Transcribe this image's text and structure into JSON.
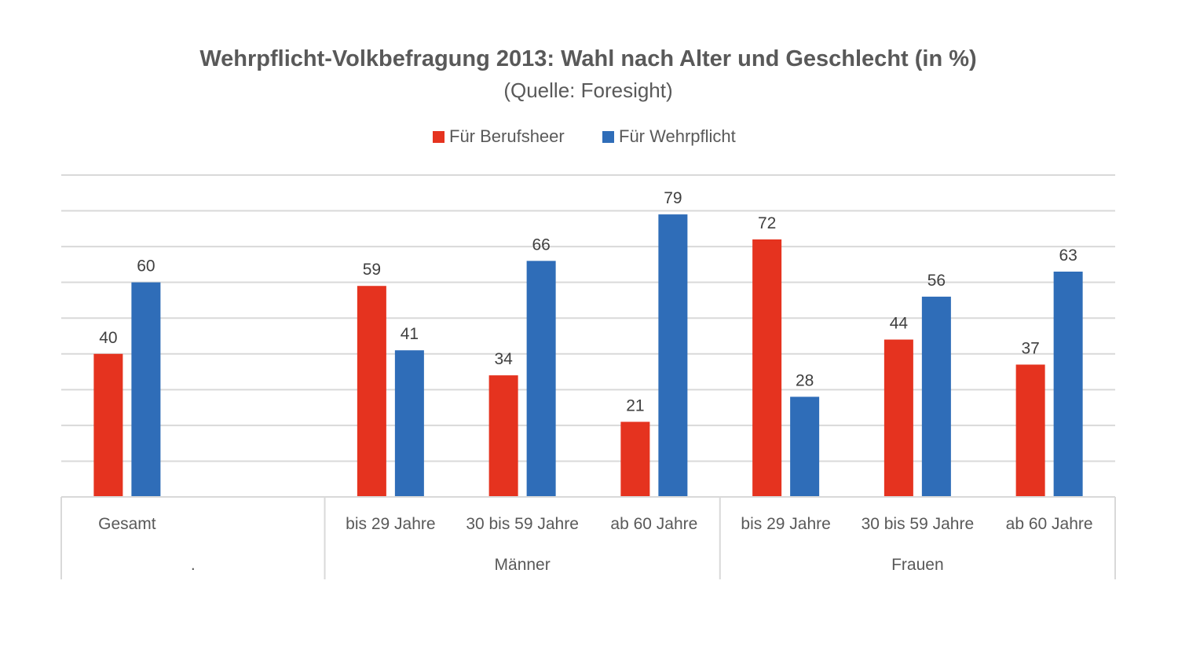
{
  "chart_data": {
    "type": "bar",
    "title": "Wehrpflicht-Volkbefragung 2013: Wahl nach Alter und Geschlecht (in %)",
    "subtitle": "(Quelle: Foresight)",
    "xlabel": "",
    "ylabel": "",
    "ylim": [
      0,
      90
    ],
    "grid": true,
    "gridline_step": 10,
    "y_axis_labels_visible": false,
    "legend_position": "top",
    "groups": [
      {
        "label": ".",
        "categories": [
          "Gesamt",
          ""
        ]
      },
      {
        "label": "Männer",
        "categories": [
          "bis 29 Jahre",
          "30 bis 59 Jahre",
          "ab 60 Jahre"
        ]
      },
      {
        "label": "Frauen",
        "categories": [
          "bis 29 Jahre",
          "30 bis 59 Jahre",
          "ab 60 Jahre"
        ]
      }
    ],
    "categories": [
      "Gesamt",
      "",
      "bis 29 Jahre",
      "30 bis 59 Jahre",
      "ab 60 Jahre",
      "bis 29 Jahre",
      "30 bis 59 Jahre",
      "ab 60 Jahre"
    ],
    "series": [
      {
        "name": "Für Berufsheer",
        "color": "#e5331f",
        "values": [
          40,
          null,
          59,
          34,
          21,
          72,
          44,
          37
        ]
      },
      {
        "name": "Für Wehrpflicht",
        "color": "#2f6db8",
        "values": [
          60,
          null,
          41,
          66,
          79,
          28,
          56,
          63
        ]
      }
    ]
  }
}
